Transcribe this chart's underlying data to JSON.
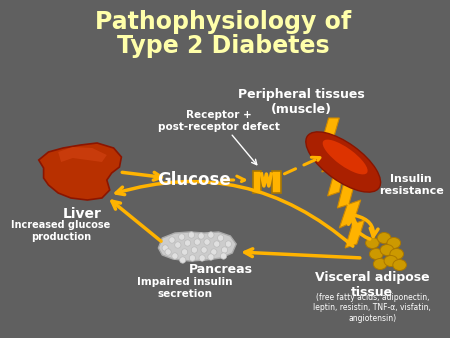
{
  "title_line1": "Pathophysiology of",
  "title_line2": "Type 2 Diabetes",
  "title_color": "#FFFFAA",
  "background_color": "#606060",
  "arrow_color": "#FFB300",
  "text_color": "#FFFFFF",
  "label_glucose": "Glucose",
  "label_liver": "Liver",
  "label_pancreas": "Pancreas",
  "label_peripheral": "Peripheral tissues\n(muscle)",
  "label_visceral": "Visceral adipose\ntissue",
  "label_insulin_resistance": "Insulin\nresistance",
  "label_increased_glucose": "Increased glucose\nproduction",
  "label_impaired_insulin": "Impaired insulin\nsecretion",
  "label_receptor": "Receptor +\npost-receptor defect",
  "label_visceral_detail": "(free fatty acids, adiponectin,\nleptin, resistin, TNF-α, visfatin,\nangiotensin)",
  "liver_color": "#B83000",
  "liver_highlight": "#D04010",
  "muscle_dark": "#8B1500",
  "muscle_mid": "#CC2200",
  "muscle_light": "#FF6600",
  "pancreas_color": "#CCCCCC",
  "pancreas_dot": "#E8E8E8",
  "fat_color": "#CC9900",
  "fat_edge": "#AA7700",
  "bolt_color": "#FFB300"
}
